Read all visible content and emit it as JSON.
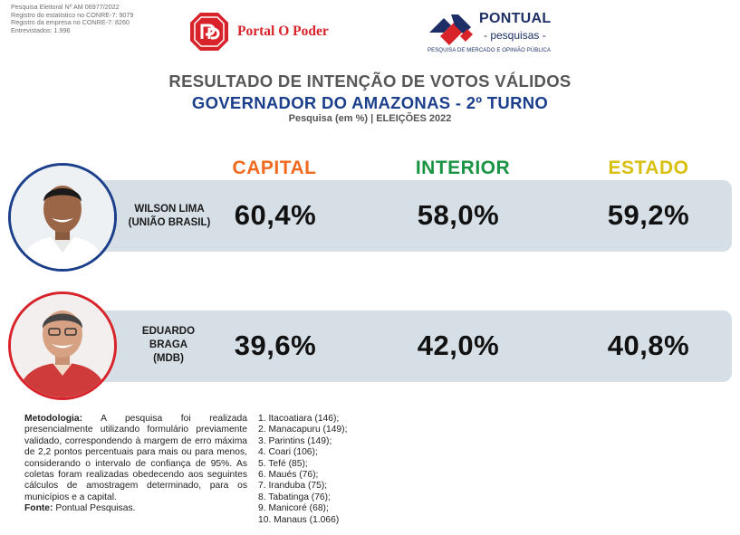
{
  "registry": [
    "Pesquisa Eleitoral Nº AM 06977/2022",
    "Registro do estatístico no CONRE-7: 9079",
    "Registro da empresa no CONRE-7: 8260",
    "Entrevistados: 1.996"
  ],
  "logos": {
    "portal": {
      "name": "Portal O Poder",
      "color": "#d8232a"
    },
    "pontual": {
      "name": "PONTUAL",
      "sub": "- pesquisas -",
      "tagline": "PESQUISA DE MERCADO E OPINIÃO PÚBLICA",
      "color": "#1d2f66"
    }
  },
  "header": {
    "title": "RESULTADO DE INTENÇÃO DE VOTOS VÁLIDOS",
    "subtitle": "GOVERNADOR DO AMAZONAS - 2º TURNO",
    "note": "Pesquisa (em %) | ELEIÇÕES 2022"
  },
  "columns": [
    {
      "label": "CAPITAL",
      "color": "#f06a1f"
    },
    {
      "label": "INTERIOR",
      "color": "#1a9444"
    },
    {
      "label": "ESTADO",
      "color": "#d9bf10"
    }
  ],
  "candidates": [
    {
      "name_line1": "WILSON LIMA",
      "name_line2": "(UNIÃO BRASIL)",
      "name_line3": "",
      "ring_color": "#1c3f8c",
      "values": [
        "60,4%",
        "58,0%",
        "59,2%"
      ]
    },
    {
      "name_line1": "EDUARDO",
      "name_line2": "BRAGA",
      "name_line3": "(MDB)",
      "ring_color": "#d8232a",
      "values": [
        "39,6%",
        "42,0%",
        "40,8%"
      ]
    }
  ],
  "methodology": {
    "label": "Metodologia:",
    "text": " A pesquisa foi realizada presencialmente utilizando formulário previamente validado, correspondendo à margem de erro máxima de 2,2 pontos percentuais para mais ou para menos, considerando o intervalo de confiança de 95%. As coletas foram realizadas obedecendo aos seguintes cálculos de amostragem determinado, para os municípios e a capital.",
    "source_label": "Fonte:",
    "source": " Pontual Pesquisas."
  },
  "cities": [
    "1. Itacoatiara (146);",
    "2. Manacapuru (149);",
    "3. Parintins (149);",
    "4. Coari (106);",
    "5. Tefé (85);",
    "6. Maués (76);",
    "7. Iranduba (75);",
    "8. Tabatinga (76);",
    "9. Manicoré (68);",
    "10. Manaus (1.066)"
  ]
}
